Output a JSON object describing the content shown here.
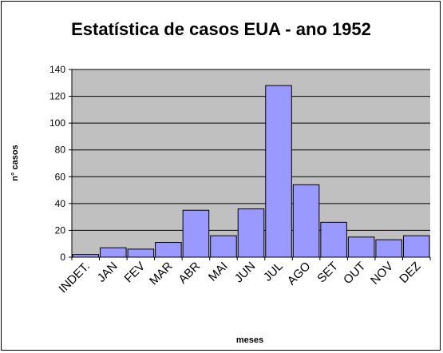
{
  "chart_data": {
    "type": "bar",
    "title": "Estatística de casos EUA - ano 1952",
    "xlabel": "meses",
    "ylabel": "n° casos",
    "categories": [
      "INDET.",
      "JAN",
      "FEV",
      "MAR",
      "ABR",
      "MAI",
      "JUN",
      "JUL",
      "AGO",
      "SET",
      "OUT",
      "NOV",
      "DEZ"
    ],
    "values": [
      2,
      7,
      6,
      11,
      35,
      16,
      36,
      128,
      54,
      26,
      15,
      13,
      16
    ],
    "ylim": [
      0,
      140
    ],
    "yticks": [
      0,
      20,
      40,
      60,
      80,
      100,
      120,
      140
    ],
    "grid": true,
    "legend": "none",
    "colors": {
      "bar_fill": "#9999FF",
      "bar_stroke": "#000000",
      "plot_background": "#C0C0C0",
      "gridline": "#000000"
    }
  }
}
